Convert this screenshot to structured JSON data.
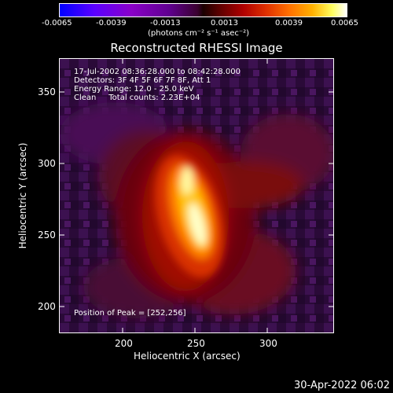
{
  "colorbar": {
    "ticks": [
      "-0.0065",
      "-0.0039",
      "-0.0013",
      "0.0013",
      "0.0039",
      "0.0065"
    ],
    "units": "(photons cm⁻² s⁻¹ asec⁻²)"
  },
  "title": "Reconstructed RHESSI Image",
  "info": {
    "line1": "17-Jul-2002 08:36:28.000 to 08:42:28.000",
    "line2": "Detectors: 3F 4F 5F 6F 7F 8F, Att 1",
    "line3": "Energy Range: 12.0 - 25.0 keV",
    "line4": "Clean     Total counts: 2.23E+04"
  },
  "peak_label": "Position of Peak = [252,256]",
  "axes": {
    "xlabel": "Heliocentric X (arcsec)",
    "ylabel": "Heliocentric Y (arcsec)",
    "xticks": [
      "200",
      "250",
      "300"
    ],
    "yticks": [
      "350",
      "300",
      "250",
      "200"
    ]
  },
  "timestamp": "30-Apr-2022 06:02",
  "colors": {
    "background": "#000000",
    "text": "#ffffff",
    "peak": "#ffffc8"
  }
}
